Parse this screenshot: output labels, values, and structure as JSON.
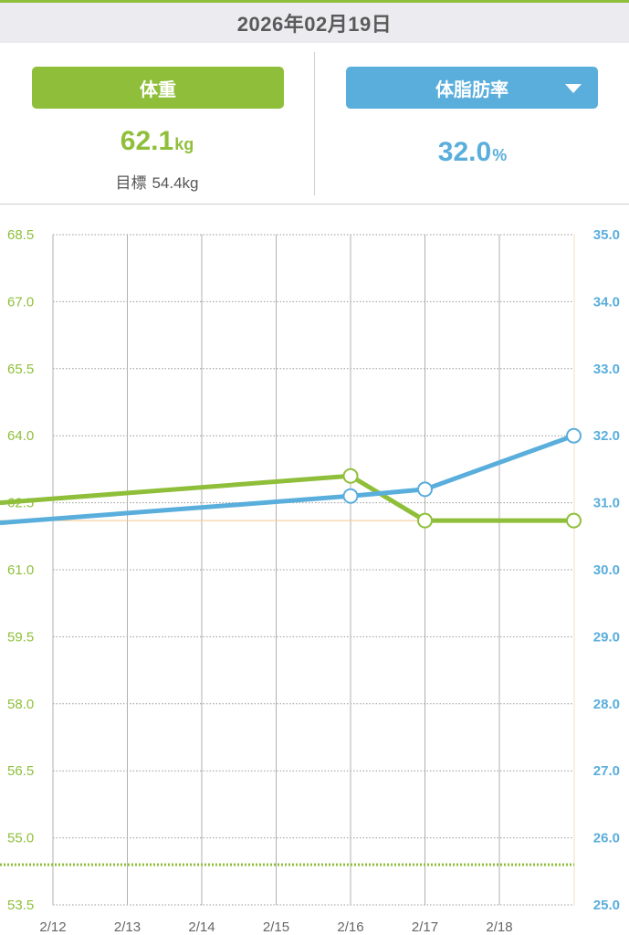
{
  "header": {
    "date": "2026年02月19日"
  },
  "weight_panel": {
    "button_label": "体重",
    "value": "62.1",
    "unit": "kg",
    "goal_label": "目標",
    "goal_value": "54.4kg"
  },
  "fat_panel": {
    "button_label": "体脂肪率",
    "value": "32.0",
    "unit": "%",
    "dropdown_icon": "caret-down-icon"
  },
  "colors": {
    "weight": "#8fbf3a",
    "fat": "#5aaedc",
    "date_bar": "#ececf0",
    "baseline": "#f3c98b"
  },
  "chart_data": {
    "type": "line",
    "categories": [
      "2/12",
      "2/13",
      "2/14",
      "2/15",
      "2/16",
      "2/17",
      "2/18"
    ],
    "y_left": {
      "ticks": [
        "68.5",
        "67.0",
        "65.5",
        "64.0",
        "62.5",
        "61.0",
        "59.5",
        "58.0",
        "56.5",
        "55.0",
        "53.5"
      ],
      "ylim": [
        53.5,
        68.5
      ]
    },
    "y_right": {
      "ticks": [
        "35.0",
        "34.0",
        "33.0",
        "32.0",
        "31.0",
        "30.0",
        "29.0",
        "28.0",
        "27.0",
        "26.0",
        "25.0"
      ],
      "ylim": [
        25.0,
        35.0
      ]
    },
    "series": [
      {
        "axis": "left",
        "x": [
          2.0,
          6.0,
          7.0,
          9.0
        ],
        "values": [
          62.5,
          63.1,
          62.1,
          62.1
        ],
        "markers": [
          false,
          true,
          true,
          true
        ]
      },
      {
        "axis": "right",
        "x": [
          2.0,
          6.0,
          7.0,
          9.0
        ],
        "values": [
          30.7,
          31.1,
          31.2,
          32.0
        ],
        "markers": [
          false,
          true,
          true,
          true
        ]
      }
    ],
    "goal_line": 54.4,
    "reference_line_left": 62.1,
    "grid": true
  }
}
